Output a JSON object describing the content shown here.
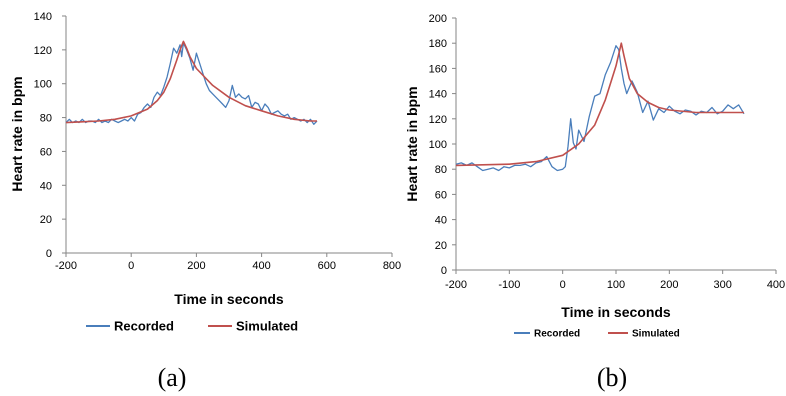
{
  "chart_data": [
    {
      "type": "line",
      "panel_label": "(a)",
      "xlabel": "Time in seconds",
      "ylabel": "Heart rate in bpm",
      "xlim": [
        -200,
        800
      ],
      "ylim": [
        0,
        140
      ],
      "x_ticks": [
        -200,
        0,
        200,
        400,
        600,
        800
      ],
      "y_ticks": [
        0,
        20,
        40,
        60,
        80,
        100,
        120,
        140
      ],
      "grid": false,
      "legend_position": "bottom",
      "colors": {
        "Recorded": "#4a7ebb",
        "Simulated": "#c0504d"
      },
      "series": [
        {
          "name": "Recorded",
          "x": [
            -200,
            -190,
            -180,
            -170,
            -160,
            -150,
            -140,
            -130,
            -120,
            -110,
            -100,
            -90,
            -80,
            -70,
            -60,
            -50,
            -40,
            -30,
            -20,
            -10,
            0,
            10,
            20,
            30,
            40,
            50,
            60,
            70,
            80,
            90,
            100,
            110,
            120,
            130,
            140,
            150,
            155,
            160,
            165,
            170,
            180,
            190,
            200,
            210,
            220,
            230,
            240,
            250,
            260,
            270,
            280,
            290,
            300,
            310,
            320,
            330,
            340,
            350,
            360,
            370,
            380,
            390,
            400,
            410,
            420,
            430,
            440,
            450,
            460,
            470,
            480,
            490,
            500,
            510,
            520,
            530,
            540,
            550,
            560,
            570
          ],
          "values": [
            77,
            79,
            77,
            78,
            77,
            79,
            77,
            78,
            78,
            77,
            79,
            77,
            78,
            77,
            79,
            78,
            77,
            78,
            79,
            78,
            80,
            78,
            82,
            83,
            86,
            88,
            86,
            92,
            95,
            93,
            98,
            104,
            112,
            121,
            118,
            123,
            116,
            124,
            122,
            120,
            115,
            108,
            118,
            112,
            106,
            100,
            96,
            94,
            92,
            90,
            88,
            86,
            90,
            99,
            92,
            94,
            92,
            91,
            93,
            86,
            89,
            88,
            84,
            88,
            86,
            82,
            83,
            84,
            82,
            81,
            82,
            79,
            80,
            79,
            78,
            79,
            77,
            79,
            76,
            78
          ]
        },
        {
          "name": "Simulated",
          "x": [
            -200,
            -150,
            -100,
            -50,
            0,
            50,
            80,
            100,
            120,
            140,
            150,
            160,
            170,
            180,
            200,
            250,
            300,
            350,
            400,
            450,
            500,
            550,
            570
          ],
          "values": [
            77,
            77.5,
            78,
            79,
            81,
            85,
            90,
            95,
            103,
            114,
            120,
            125,
            121,
            116,
            109,
            99,
            92,
            87,
            84,
            81,
            79,
            78,
            78
          ]
        }
      ]
    },
    {
      "type": "line",
      "panel_label": "(b)",
      "xlabel": "Time in seconds",
      "ylabel": "Heart rate in bpm",
      "xlim": [
        -200,
        400
      ],
      "ylim": [
        0,
        200
      ],
      "x_ticks": [
        -200,
        -100,
        0,
        100,
        200,
        300,
        400
      ],
      "y_ticks": [
        0,
        20,
        40,
        60,
        80,
        100,
        120,
        140,
        160,
        180,
        200
      ],
      "grid": false,
      "legend_position": "bottom",
      "colors": {
        "Recorded": "#4a7ebb",
        "Simulated": "#c0504d"
      },
      "series": [
        {
          "name": "Recorded",
          "x": [
            -200,
            -190,
            -180,
            -170,
            -160,
            -150,
            -140,
            -130,
            -120,
            -110,
            -100,
            -90,
            -80,
            -70,
            -60,
            -50,
            -40,
            -30,
            -20,
            -10,
            0,
            5,
            10,
            15,
            20,
            25,
            30,
            40,
            50,
            60,
            70,
            80,
            90,
            100,
            105,
            110,
            115,
            120,
            130,
            140,
            150,
            160,
            170,
            180,
            190,
            200,
            210,
            220,
            230,
            240,
            250,
            260,
            270,
            280,
            290,
            300,
            310,
            320,
            330,
            340
          ],
          "values": [
            84,
            85,
            83,
            85,
            82,
            79,
            80,
            81,
            79,
            82,
            81,
            83,
            83,
            84,
            82,
            85,
            86,
            90,
            82,
            79,
            80,
            82,
            98,
            120,
            101,
            96,
            111,
            102,
            122,
            138,
            140,
            155,
            165,
            178,
            175,
            160,
            148,
            140,
            150,
            141,
            125,
            134,
            119,
            128,
            125,
            130,
            126,
            124,
            127,
            126,
            123,
            126,
            125,
            129,
            124,
            126,
            131,
            128,
            131,
            124
          ]
        },
        {
          "name": "Simulated",
          "x": [
            -200,
            -150,
            -100,
            -50,
            0,
            30,
            60,
            80,
            100,
            110,
            115,
            125,
            140,
            160,
            180,
            200,
            250,
            300,
            340
          ],
          "values": [
            83,
            83.5,
            84,
            86,
            91,
            100,
            115,
            135,
            162,
            180,
            170,
            152,
            140,
            133,
            129,
            127,
            125,
            125,
            125
          ]
        }
      ]
    }
  ]
}
